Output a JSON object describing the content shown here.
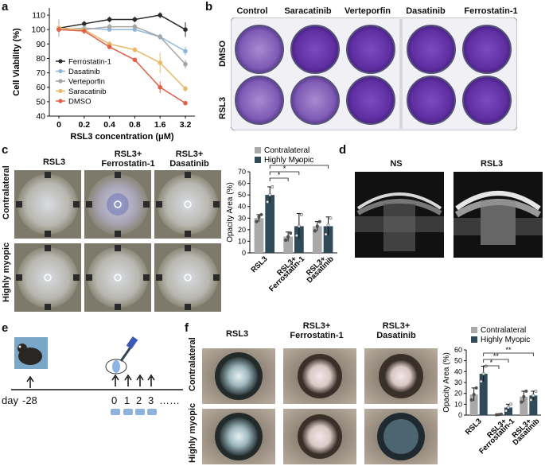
{
  "panels": {
    "a": "a",
    "b": "b",
    "c": "c",
    "d": "d",
    "e": "e",
    "f": "f"
  },
  "colors": {
    "ferrostatin": "#2b2b2b",
    "dasatinib": "#8fb6dd",
    "verteporfin": "#a6a6a6",
    "saracatinib": "#e8b96b",
    "dmso": "#e0604a",
    "contralateral": "#a9a9a9",
    "myopic": "#2f4b5a",
    "crystal_violet": "#6a3aa8"
  },
  "b": {
    "columns": [
      "Control",
      "Saracatinib",
      "Verteporfin",
      "Dasatinib",
      "Ferrostatin-1"
    ],
    "rows": [
      "DMSO",
      "RSL3"
    ]
  },
  "c": {
    "col_labels": [
      "RSL3",
      "RSL3+\nFerrostatin-1",
      "RSL3+\nDasatinib"
    ],
    "row_labels": [
      "Contralateral",
      "Highly myopic"
    ]
  },
  "d": {
    "labels": [
      "NS",
      "RSL3"
    ]
  },
  "e": {
    "day_label": "day",
    "start_day": "-28",
    "days": [
      "0",
      "1",
      "2",
      "3"
    ],
    "dots": "……"
  },
  "f": {
    "col_labels": [
      "RSL3",
      "RSL3+\nFerrostatin-1",
      "RSL3+\nDasatinib"
    ],
    "row_labels": [
      "Contralateral",
      "Highly myopic"
    ]
  },
  "chart_data": [
    {
      "id": "a",
      "type": "line",
      "title": "",
      "xlabel": "RSL3 concentration (μM)",
      "ylabel": "Cell Viability (%)",
      "categories": [
        "0",
        "0.2",
        "0.4",
        "0.8",
        "1.6",
        "3.2"
      ],
      "ylim": [
        40,
        115
      ],
      "yticks": [
        40,
        50,
        60,
        70,
        80,
        90,
        100,
        110
      ],
      "legend_position": "left",
      "series": [
        {
          "name": "Ferrostatin-1",
          "color": "#2b2b2b",
          "values": [
            101,
            104,
            107,
            107,
            110,
            100
          ],
          "errors": [
            2,
            2,
            2,
            2,
            2,
            5
          ]
        },
        {
          "name": "Dasatinib",
          "color": "#8fb6dd",
          "values": [
            100,
            101,
            100,
            100,
            95,
            85
          ],
          "errors": [
            3,
            2,
            1,
            1,
            2,
            3
          ]
        },
        {
          "name": "Verteporfin",
          "color": "#a6a6a6",
          "values": [
            101,
            100,
            102,
            102,
            95,
            76
          ],
          "errors": [
            6,
            2,
            2,
            2,
            2,
            3
          ]
        },
        {
          "name": "Saracatinib",
          "color": "#e8b96b",
          "values": [
            101,
            100,
            90,
            86,
            77,
            59
          ],
          "errors": [
            3,
            2,
            2,
            2,
            7,
            2
          ]
        },
        {
          "name": "DMSO",
          "color": "#e0604a",
          "values": [
            100,
            99,
            88,
            79,
            60,
            49
          ],
          "errors": [
            2,
            2,
            1,
            1,
            4,
            1
          ]
        }
      ]
    },
    {
      "id": "c",
      "type": "bar",
      "title": "",
      "xlabel": "",
      "ylabel": "Opacity Area (%)",
      "categories": [
        "RSL3",
        "RSL3+\nFerrostatin-1",
        "RSL3+\nDasatinib"
      ],
      "ylim": [
        0,
        70
      ],
      "yticks": [
        0,
        10,
        20,
        30,
        40,
        50,
        60,
        70
      ],
      "legend_position": "top",
      "series": [
        {
          "name": "Contralateral",
          "color": "#a9a9a9",
          "values": [
            30,
            14,
            23
          ],
          "errors": [
            3,
            4,
            4
          ],
          "points": [
            [
              27,
              31,
              33
            ],
            [
              11,
              14,
              17
            ],
            [
              19,
              23,
              27
            ]
          ]
        },
        {
          "name": "Highly Myopic",
          "color": "#2f4b5a",
          "values": [
            50,
            23,
            23
          ],
          "errors": [
            7,
            11,
            8
          ],
          "points": [
            [
              44,
              50,
              57
            ],
            [
              15,
              23,
              33
            ],
            [
              16,
              24,
              30
            ]
          ]
        }
      ],
      "significance": [
        {
          "label": "*",
          "from": "RSL3 Highly Myopic",
          "to": "RSL3+Ferrostatin-1 Contralateral"
        },
        {
          "label": "*",
          "from": "RSL3 Highly Myopic",
          "to": "RSL3+Ferrostatin-1 Highly Myopic"
        },
        {
          "label": "*",
          "from": "RSL3 Highly Myopic",
          "to": "RSL3+Dasatinib Highly Myopic"
        }
      ]
    },
    {
      "id": "f",
      "type": "bar",
      "title": "",
      "xlabel": "",
      "ylabel": "Opacity Area (%)",
      "categories": [
        "RSL3",
        "RSL3+\nFerrostatin-1",
        "RSL3+\nDasatinib"
      ],
      "ylim": [
        0,
        60
      ],
      "yticks": [
        0,
        10,
        20,
        30,
        40,
        50,
        60
      ],
      "legend_position": "top",
      "series": [
        {
          "name": "Contralateral",
          "color": "#a9a9a9",
          "values": [
            19,
            0.5,
            17
          ],
          "errors": [
            6,
            0.3,
            5
          ],
          "points": [
            [
              14,
              19,
              25
            ],
            [
              0.3,
              0.5,
              0.8
            ],
            [
              12,
              17,
              22
            ]
          ]
        },
        {
          "name": "Highly Myopic",
          "color": "#2f4b5a",
          "values": [
            38,
            7,
            18
          ],
          "errors": [
            7,
            3,
            4
          ],
          "points": [
            [
              31,
              38,
              45
            ],
            [
              4,
              7,
              10
            ],
            [
              14,
              18,
              22
            ]
          ]
        }
      ],
      "significance": [
        {
          "label": "*",
          "from": "RSL3 Highly Myopic",
          "to": "RSL3+Ferrostatin-1 Contralateral"
        },
        {
          "label": "**",
          "from": "RSL3 Highly Myopic",
          "to": "RSL3+Ferrostatin-1 Highly Myopic"
        },
        {
          "label": "**",
          "from": "RSL3 Highly Myopic",
          "to": "RSL3+Dasatinib Highly Myopic"
        }
      ]
    }
  ]
}
